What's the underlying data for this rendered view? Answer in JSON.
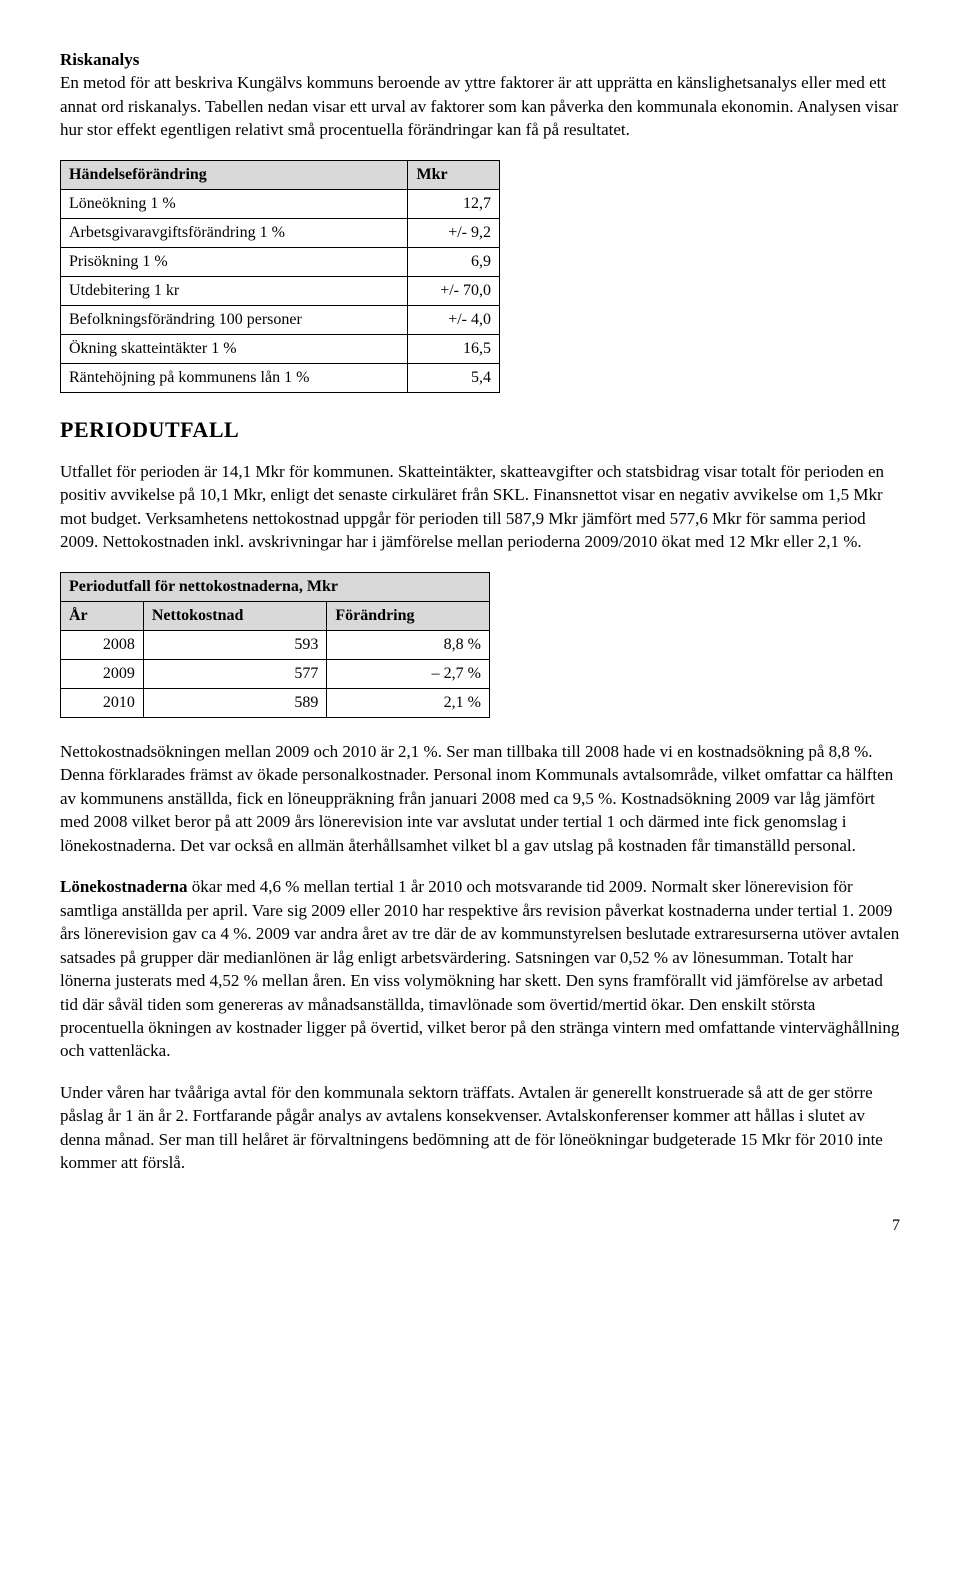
{
  "s1": {
    "heading": "Riskanalys",
    "p1": "En metod för att beskriva Kungälvs kommuns beroende av yttre faktorer är att upprätta en känslighetsanalys eller med ett annat ord riskanalys. Tabellen nedan visar ett urval av faktorer som kan påverka den kommunala ekonomin. Analysen visar hur stor effekt egentligen relativt små procentuella förändringar kan få på resultatet."
  },
  "t1": {
    "h1": "Händelseförändring",
    "h2": "Mkr",
    "rows": [
      {
        "label": "Löneökning 1 %",
        "val": "12,7"
      },
      {
        "label": "Arbetsgivaravgiftsförändring 1 %",
        "val": "+/- 9,2"
      },
      {
        "label": "Prisökning 1 %",
        "val": "6,9"
      },
      {
        "label": "Utdebitering 1 kr",
        "val": "+/- 70,0"
      },
      {
        "label": "Befolkningsförändring 100 personer",
        "val": "+/- 4,0"
      },
      {
        "label": "Ökning skatteintäkter 1 %",
        "val": "16,5"
      },
      {
        "label": "Räntehöjning på kommunens lån 1 %",
        "val": "5,4"
      }
    ]
  },
  "s2": {
    "heading": "PERIODUTFALL",
    "p1": "Utfallet för perioden är 14,1 Mkr för kommunen. Skatteintäkter, skatteavgifter och statsbidrag visar totalt för perioden en positiv avvikelse på 10,1 Mkr, enligt det senaste cirkuläret från SKL. Finansnettot visar en negativ avvikelse om 1,5 Mkr mot budget. Verksamhetens nettokostnad uppgår för perioden till 587,9 Mkr jämfört med 577,6 Mkr för samma period 2009. Nettokostnaden inkl. avskrivningar har i jämförelse mellan perioderna 2009/2010 ökat med 12 Mkr eller 2,1 %."
  },
  "t2": {
    "title": "Periodutfall för nettokostnaderna, Mkr",
    "h1": "År",
    "h2": "Nettokostnad",
    "h3": "Förändring",
    "rows": [
      {
        "c1": "2008",
        "c2": "593",
        "c3": "8,8 %"
      },
      {
        "c1": "2009",
        "c2": "577",
        "c3": "– 2,7 %"
      },
      {
        "c1": "2010",
        "c2": "589",
        "c3": "2,1 %"
      }
    ]
  },
  "s3": {
    "p1": "Nettokostnadsökningen mellan 2009 och 2010 är 2,1 %. Ser man tillbaka till 2008 hade vi en kostnadsökning på 8,8 %. Denna förklarades främst av ökade personalkostnader. Personal inom Kommunals avtalsområde, vilket omfattar ca hälften av kommunens anställda, fick en löneuppräkning från januari 2008 med ca 9,5 %. Kostnadsökning 2009 var låg jämfört med 2008 vilket beror på att 2009 års lönerevision inte var avslutat under tertial 1 och därmed inte fick genomslag i lönekostnaderna. Det var också en allmän återhållsamhet vilket bl a gav utslag på kostnaden får timanställd personal."
  },
  "s4": {
    "lead": "Lönekostnaderna",
    "rest": " ökar med 4,6 % mellan tertial 1 år 2010 och motsvarande tid 2009. Normalt sker lönerevision för samtliga anställda per april. Vare sig 2009 eller 2010 har respektive års revision påverkat kostnaderna under tertial 1.  2009 års lönerevision gav ca 4 %. 2009 var andra året av tre där de av kommunstyrelsen beslutade extraresurserna utöver avtalen satsades på grupper där medianlönen är låg enligt arbetsvärdering. Satsningen var 0,52 % av lönesumman.  Totalt har lönerna justerats med 4,52 % mellan åren. En viss volymökning har skett. Den syns framförallt vid jämförelse av arbetad tid där såväl tiden som genereras av månadsanställda, timavlönade som övertid/mertid ökar. Den enskilt största procentuella ökningen av kostnader ligger på övertid, vilket beror på den stränga vintern med omfattande vinterväghållning och vattenläcka."
  },
  "s5": {
    "p1": "Under våren har tvååriga avtal för den kommunala sektorn träffats. Avtalen är generellt konstruerade så att de ger större påslag år 1 än år 2. Fortfarande pågår analys av avtalens konsekvenser. Avtalskonferenser kommer att hållas i slutet av denna månad. Ser man till helåret är förvaltningens bedömning att de för löneökningar budgeterade 15 Mkr för 2010 inte kommer att förslå."
  },
  "pageNum": "7"
}
